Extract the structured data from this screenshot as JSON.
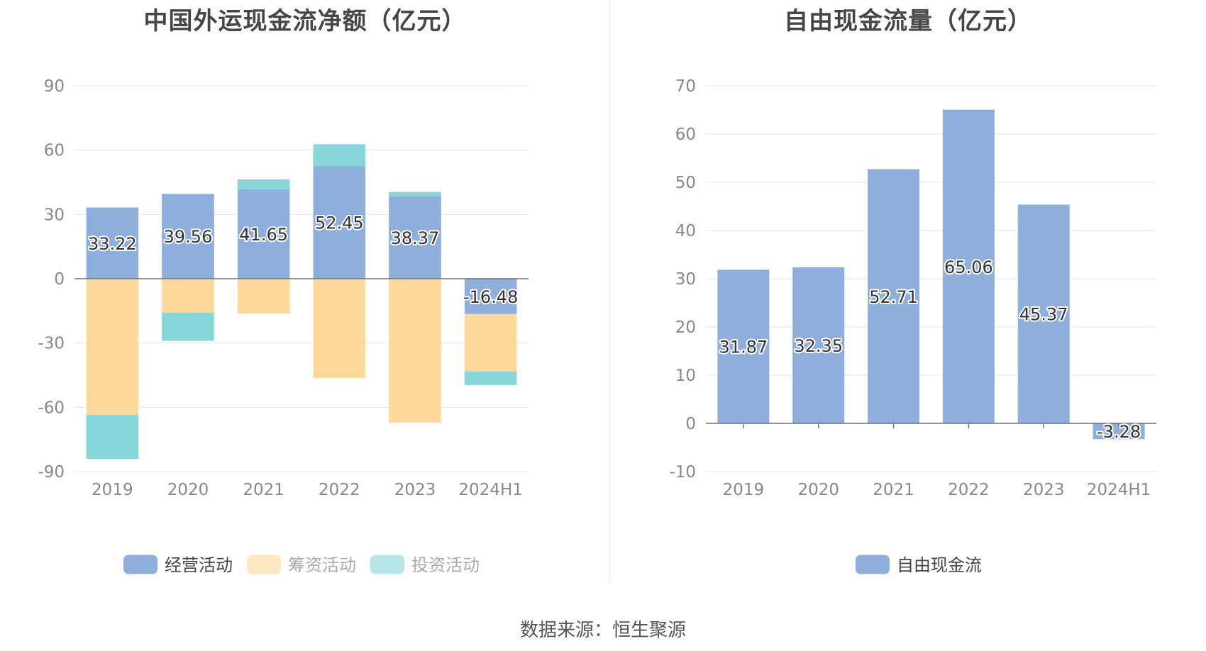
{
  "chart_data": [
    {
      "type": "bar",
      "stacked": true,
      "title": "中国外运现金流净额（亿元）",
      "categories": [
        "2019",
        "2020",
        "2021",
        "2022",
        "2023",
        "2024H1"
      ],
      "series": [
        {
          "name": "经营活动",
          "color": "#8eaedb",
          "values": [
            33.22,
            39.56,
            41.65,
            52.45,
            38.37,
            -16.48
          ]
        },
        {
          "name": "筹资活动",
          "color": "#fed99b",
          "values": [
            -63.5,
            -15.8,
            -16.3,
            -46.3,
            -67.2,
            -26.8
          ]
        },
        {
          "name": "投资活动",
          "color": "#87d6d9",
          "values": [
            -20.6,
            -13.2,
            4.7,
            10.3,
            2.1,
            -6.3
          ]
        }
      ],
      "data_labels": [
        "33.22",
        "39.56",
        "41.65",
        "52.45",
        "38.37",
        "-16.48"
      ],
      "ylim": [
        -90,
        90
      ],
      "yticks": [
        90,
        60,
        30,
        0,
        -30,
        -60,
        -90
      ],
      "ytick_labels": [
        "90",
        "60",
        "30",
        "0",
        "-30",
        "-60",
        "-90"
      ],
      "grid": true,
      "legend": "bottom"
    },
    {
      "type": "bar",
      "title": "自由现金流量（亿元）",
      "categories": [
        "2019",
        "2020",
        "2021",
        "2022",
        "2023",
        "2024H1"
      ],
      "series": [
        {
          "name": "自由现金流",
          "color": "#8eaedb",
          "values": [
            31.87,
            32.35,
            52.71,
            65.06,
            45.37,
            -3.28
          ]
        }
      ],
      "data_labels": [
        "31.87",
        "32.35",
        "52.71",
        "65.06",
        "45.37",
        "-3.28"
      ],
      "ylim": [
        -10,
        70
      ],
      "yticks": [
        70,
        60,
        50,
        40,
        30,
        20,
        10,
        0,
        -10
      ],
      "ytick_labels": [
        "70",
        "60",
        "50",
        "40",
        "30",
        "20",
        "10",
        "0",
        "-10"
      ],
      "grid": true,
      "legend": "bottom"
    }
  ],
  "footer": {
    "source_label": "数据来源：",
    "source_name": "恒生聚源"
  },
  "colors": {
    "grid": "#e3e6f3",
    "axis": "#6e7079",
    "tick_text": "#888888",
    "legend_text": "#444444",
    "legend_text_muted": "#aaaaaa"
  }
}
